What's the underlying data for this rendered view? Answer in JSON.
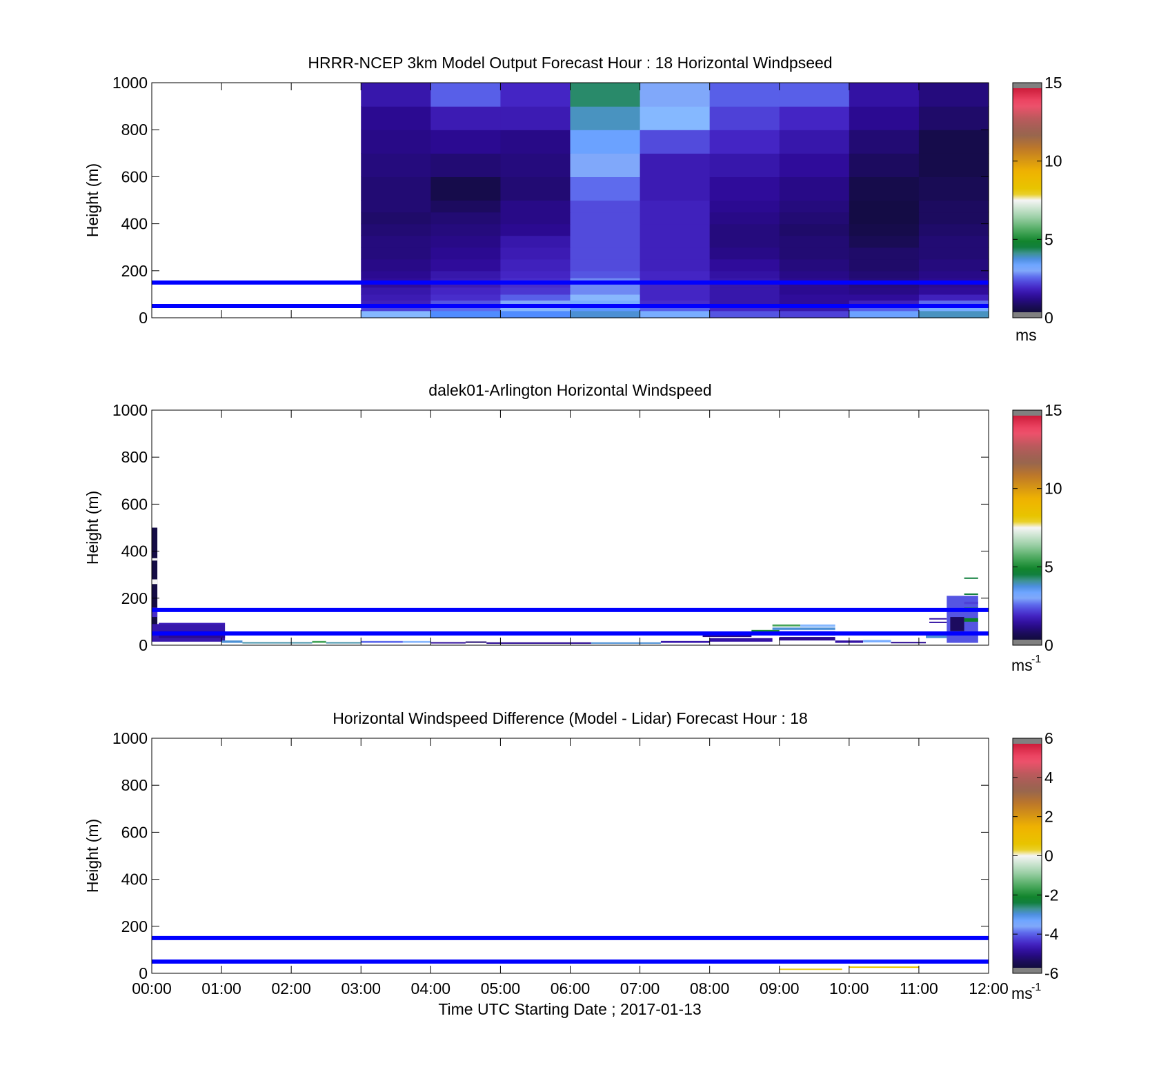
{
  "colors": {
    "frame": "#000000",
    "reference_line": "#0000ff",
    "background": "#ffffff"
  },
  "chart_data": [
    {
      "type": "heatmap",
      "title": "HRRR-NCEP 3km Model Output   Forecast Hour : 18 Horizontal Windpseed",
      "ylabel": "Height (m)",
      "xlabel": "",
      "ylim": [
        0,
        1000
      ],
      "xlim": [
        0,
        12
      ],
      "yticks": [
        0,
        200,
        400,
        600,
        800,
        1000
      ],
      "xticks_shown": false,
      "reference_lines_m": [
        50,
        150
      ],
      "colorbar": {
        "range": [
          0,
          15
        ],
        "ticks": [
          "0",
          "5",
          "10",
          "15"
        ],
        "unit": "ms"
      },
      "columns_start_hour": [
        3,
        4,
        5,
        6,
        7,
        8,
        9,
        10,
        11
      ],
      "column_width_hours": 1,
      "row_heights_m": [
        30,
        50,
        75,
        100,
        130,
        170,
        200,
        250,
        300,
        350,
        400,
        450,
        500,
        600,
        700,
        800,
        900,
        1000
      ],
      "speeds_ms": [
        [
          3.2,
          3.6,
          3.6,
          3.8,
          3.3,
          2.4,
          2.2,
          3.4,
          3.9
        ],
        [
          2.2,
          2.6,
          3.1,
          3.5,
          2.5,
          1.9,
          1.6,
          2.5,
          3.3
        ],
        [
          1.8,
          2.4,
          3.0,
          3.3,
          2.0,
          1.6,
          1.4,
          1.8,
          2.6
        ],
        [
          1.7,
          2.0,
          2.5,
          3.1,
          1.9,
          1.6,
          1.4,
          1.4,
          1.8
        ],
        [
          1.6,
          1.9,
          2.1,
          2.8,
          1.9,
          1.6,
          1.3,
          1.2,
          1.4
        ],
        [
          1.4,
          1.7,
          2.0,
          2.8,
          1.9,
          1.6,
          1.3,
          1.1,
          1.3
        ],
        [
          1.3,
          1.6,
          1.9,
          2.4,
          1.9,
          1.5,
          1.2,
          1.0,
          1.2
        ],
        [
          1.2,
          1.4,
          1.8,
          2.3,
          1.8,
          1.4,
          1.1,
          0.9,
          1.1
        ],
        [
          1.1,
          1.3,
          1.7,
          2.3,
          1.8,
          1.2,
          1.0,
          0.9,
          1.0
        ],
        [
          1.1,
          1.2,
          1.6,
          2.3,
          1.8,
          1.1,
          1.0,
          0.7,
          1.0
        ],
        [
          1.0,
          1.1,
          1.3,
          2.3,
          1.8,
          1.1,
          0.9,
          0.6,
          0.9
        ],
        [
          0.9,
          1.0,
          1.2,
          2.3,
          1.8,
          1.2,
          1.0,
          0.5,
          0.8
        ],
        [
          1.0,
          0.8,
          1.2,
          2.3,
          1.8,
          1.3,
          1.1,
          0.5,
          0.8
        ],
        [
          1.0,
          0.6,
          1.0,
          2.6,
          1.7,
          1.4,
          1.2,
          0.6,
          0.7
        ],
        [
          1.1,
          1.0,
          1.1,
          3.0,
          1.7,
          1.6,
          1.4,
          0.8,
          0.6
        ],
        [
          1.2,
          1.3,
          1.2,
          3.4,
          2.3,
          1.9,
          1.6,
          1.0,
          0.6
        ],
        [
          1.3,
          1.7,
          1.7,
          3.9,
          3.2,
          2.2,
          1.9,
          1.3,
          0.9
        ],
        [
          1.6,
          2.5,
          1.9,
          4.3,
          3.0,
          2.5,
          2.5,
          1.5,
          1.1
        ]
      ]
    },
    {
      "type": "heatmap",
      "title": "dalek01-Arlington  Horizontal Windspeed",
      "ylabel": "Height (m)",
      "xlabel": "",
      "ylim": [
        0,
        1000
      ],
      "xlim": [
        0,
        12
      ],
      "yticks": [
        0,
        200,
        400,
        600,
        800,
        1000
      ],
      "xticks_shown": false,
      "reference_lines_m": [
        50,
        150
      ],
      "colorbar": {
        "range": [
          0,
          15
        ],
        "ticks": [
          "0",
          "5",
          "10",
          "15"
        ],
        "unit": "ms",
        "unit_exponent": "-1"
      },
      "segments": [
        {
          "t0": 0.0,
          "t1": 0.08,
          "h0": 20,
          "h1": 500,
          "v": 0.5
        },
        {
          "t0": 0.0,
          "t1": 0.08,
          "h0": 120,
          "h1": 160,
          "v": 2.0
        },
        {
          "t0": 0.0,
          "t1": 0.08,
          "h0": 260,
          "h1": 280,
          "v": 7.5
        },
        {
          "t0": 0.0,
          "t1": 0.08,
          "h0": 360,
          "h1": 370,
          "v": 7.5
        },
        {
          "t0": 0.0,
          "t1": 1.05,
          "h0": 15,
          "h1": 90,
          "v": 1.6
        },
        {
          "t0": 0.1,
          "t1": 1.05,
          "h0": 90,
          "h1": 95,
          "v": 1.8
        },
        {
          "t0": 0.1,
          "t1": 1.05,
          "h0": 30,
          "h1": 60,
          "v": 1.3
        },
        {
          "t0": 1.0,
          "t1": 1.3,
          "h0": 10,
          "h1": 20,
          "v": 3.8
        },
        {
          "t0": 1.3,
          "t1": 2.3,
          "h0": 8,
          "h1": 13,
          "v": 4.0
        },
        {
          "t0": 2.3,
          "t1": 2.5,
          "h0": 10,
          "h1": 18,
          "v": 5.5
        },
        {
          "t0": 2.5,
          "t1": 3.0,
          "h0": 8,
          "h1": 13,
          "v": 4.0
        },
        {
          "t0": 3.0,
          "t1": 3.6,
          "h0": 10,
          "h1": 18,
          "v": 2.6
        },
        {
          "t0": 3.6,
          "t1": 4.0,
          "h0": 10,
          "h1": 18,
          "v": 3.1
        },
        {
          "t0": 4.0,
          "t1": 4.5,
          "h0": 8,
          "h1": 13,
          "v": 1.4
        },
        {
          "t0": 4.5,
          "t1": 4.8,
          "h0": 10,
          "h1": 16,
          "v": 1.0
        },
        {
          "t0": 4.8,
          "t1": 6.3,
          "h0": 6,
          "h1": 12,
          "v": 1.3
        },
        {
          "t0": 6.3,
          "t1": 7.3,
          "h0": 8,
          "h1": 12,
          "v": 3.8
        },
        {
          "t0": 7.3,
          "t1": 8.0,
          "h0": 10,
          "h1": 18,
          "v": 1.6
        },
        {
          "t0": 7.9,
          "t1": 8.6,
          "h0": 35,
          "h1": 45,
          "v": 1.2
        },
        {
          "t0": 8.0,
          "t1": 8.9,
          "h0": 15,
          "h1": 30,
          "v": 1.5
        },
        {
          "t0": 8.6,
          "t1": 9.0,
          "h0": 55,
          "h1": 65,
          "v": 5.0
        },
        {
          "t0": 8.9,
          "t1": 9.3,
          "h0": 80,
          "h1": 88,
          "v": 5.5
        },
        {
          "t0": 8.9,
          "t1": 9.8,
          "h0": 65,
          "h1": 75,
          "v": 3.8
        },
        {
          "t0": 9.3,
          "t1": 9.8,
          "h0": 78,
          "h1": 88,
          "v": 3.2
        },
        {
          "t0": 9.0,
          "t1": 9.8,
          "h0": 40,
          "h1": 60,
          "v": 2.8
        },
        {
          "t0": 9.0,
          "t1": 9.8,
          "h0": 20,
          "h1": 35,
          "v": 1.3
        },
        {
          "t0": 9.8,
          "t1": 10.2,
          "h0": 10,
          "h1": 20,
          "v": 1.5
        },
        {
          "t0": 10.2,
          "t1": 10.6,
          "h0": 12,
          "h1": 22,
          "v": 3.3
        },
        {
          "t0": 10.6,
          "t1": 11.1,
          "h0": 8,
          "h1": 14,
          "v": 1.3
        },
        {
          "t0": 11.1,
          "t1": 11.6,
          "h0": 30,
          "h1": 45,
          "v": 3.8
        },
        {
          "t0": 11.15,
          "t1": 11.4,
          "h0": 95,
          "h1": 100,
          "v": 1.5
        },
        {
          "t0": 11.15,
          "t1": 11.4,
          "h0": 110,
          "h1": 115,
          "v": 1.6
        },
        {
          "t0": 11.4,
          "t1": 11.85,
          "h0": 10,
          "h1": 210,
          "v": 2.4
        },
        {
          "t0": 11.45,
          "t1": 11.65,
          "h0": 60,
          "h1": 120,
          "v": 0.8
        },
        {
          "t0": 11.65,
          "t1": 11.85,
          "h0": 175,
          "h1": 185,
          "v": 2.2
        },
        {
          "t0": 11.65,
          "t1": 11.85,
          "h0": 150,
          "h1": 160,
          "v": 5.0
        },
        {
          "t0": 11.65,
          "t1": 11.85,
          "h0": 215,
          "h1": 220,
          "v": 4.5
        },
        {
          "t0": 11.65,
          "t1": 11.85,
          "h0": 283,
          "h1": 288,
          "v": 4.5
        },
        {
          "t0": 11.65,
          "t1": 11.85,
          "h0": 100,
          "h1": 115,
          "v": 4.8
        }
      ]
    },
    {
      "type": "heatmap",
      "title": "Horizontal Windspeed Difference (Model - Lidar) Forecast Hour : 18",
      "ylabel": "Height (m)",
      "xlabel": "Time UTC  Starting Date ; 2017-01-13",
      "ylim": [
        0,
        1000
      ],
      "xlim": [
        0,
        12
      ],
      "yticks": [
        0,
        200,
        400,
        600,
        800,
        1000
      ],
      "xticks": [
        "00:00",
        "01:00",
        "02:00",
        "03:00",
        "04:00",
        "05:00",
        "06:00",
        "07:00",
        "08:00",
        "09:00",
        "10:00",
        "11:00",
        "12:00"
      ],
      "xticks_shown": true,
      "reference_lines_m": [
        50,
        150
      ],
      "colorbar": {
        "range": [
          -6,
          6
        ],
        "ticks": [
          "-6",
          "-4",
          "-2",
          "0",
          "2",
          "4",
          "6"
        ],
        "unit": "ms",
        "unit_exponent": "-1"
      },
      "segments": [
        {
          "t0": 9.0,
          "t1": 9.9,
          "h0": 16,
          "h1": 20,
          "v": 0.3
        },
        {
          "t0": 10.0,
          "t1": 11.0,
          "h0": 24,
          "h1": 29,
          "v": 0.6
        }
      ]
    }
  ]
}
